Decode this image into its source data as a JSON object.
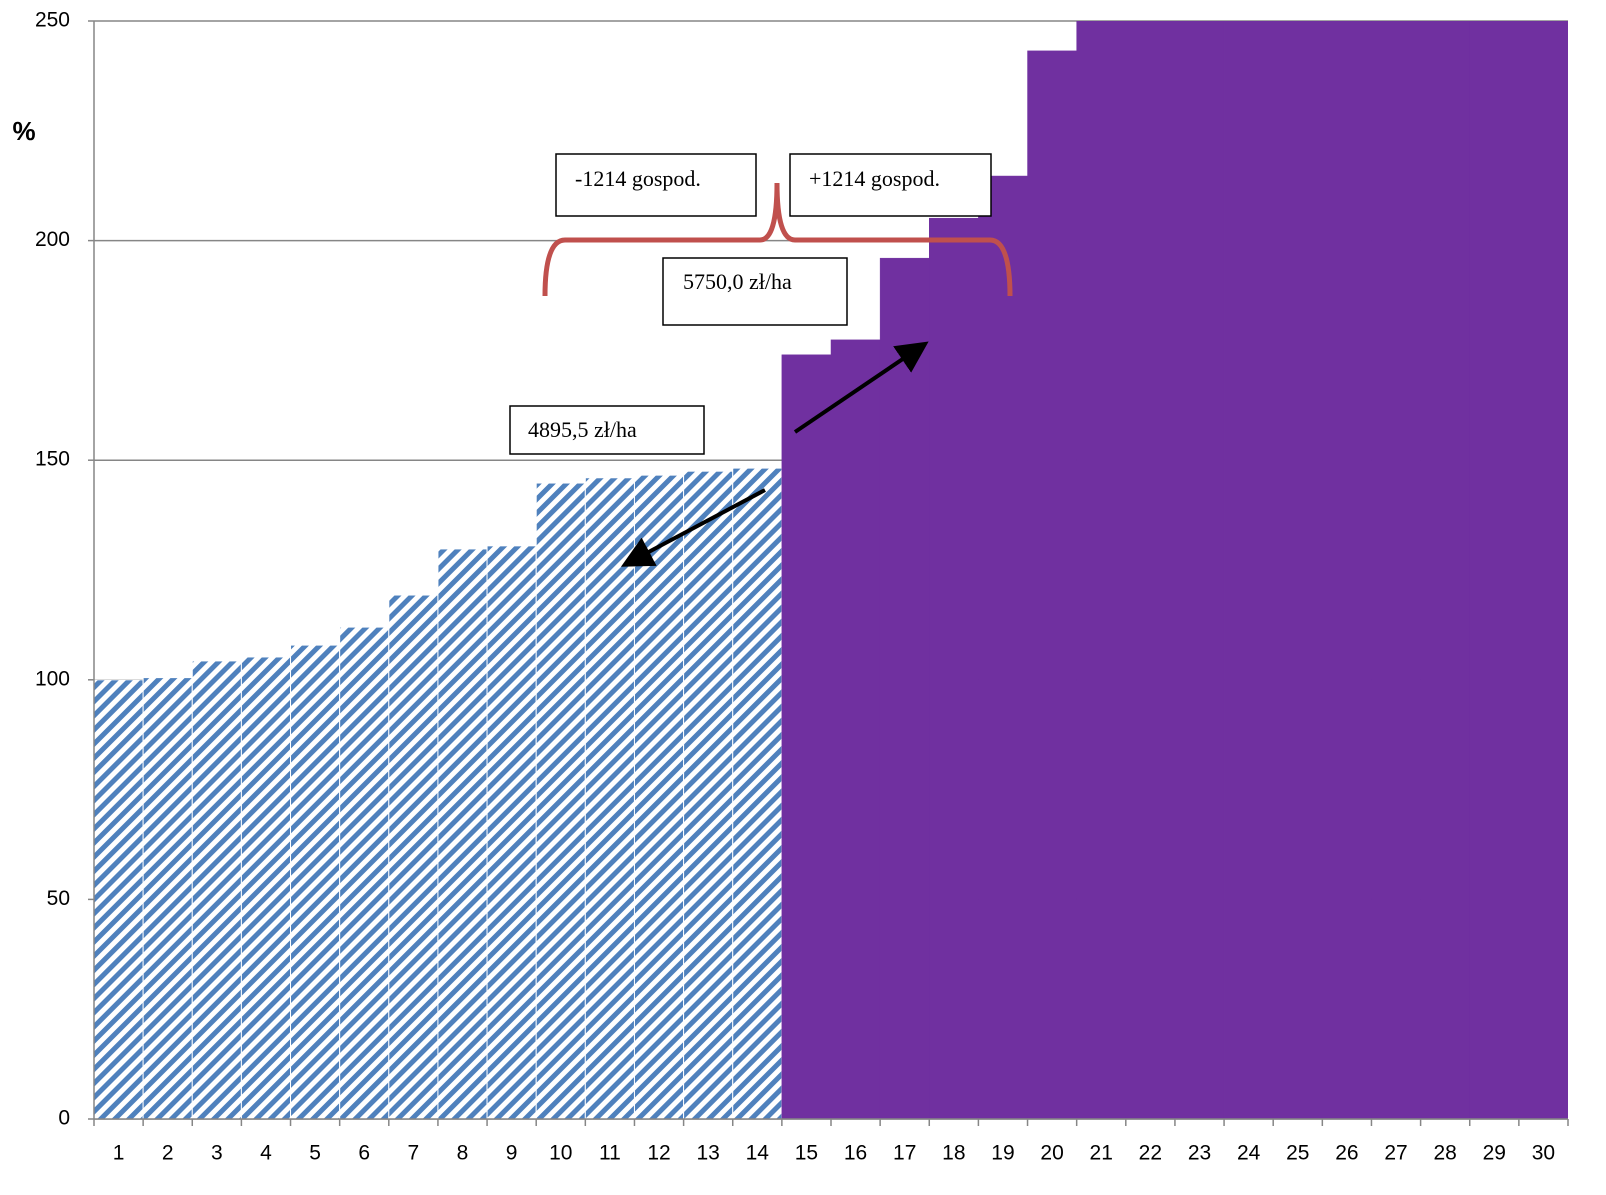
{
  "chart_data": {
    "type": "bar",
    "y_label": "%",
    "categories": [
      "1",
      "2",
      "3",
      "4",
      "5",
      "6",
      "7",
      "8",
      "9",
      "10",
      "11",
      "12",
      "13",
      "14",
      "15",
      "16",
      "17",
      "18",
      "19",
      "20",
      "21",
      "22",
      "23",
      "24",
      "25",
      "26",
      "27",
      "28",
      "29",
      "30"
    ],
    "series": [
      {
        "color": "#4f81bd",
        "pattern": "hatch",
        "values": [
          100,
          100.5,
          104.3,
          105.2,
          107.9,
          112,
          119.3,
          129.8,
          130.5,
          144.8,
          146,
          146.6,
          147.5,
          148.2,
          null,
          null,
          null,
          null,
          null,
          null,
          null,
          null,
          null,
          null,
          null,
          null,
          null,
          null,
          null,
          null
        ]
      },
      {
        "color": "#7030a0",
        "pattern": "solid",
        "values": [
          null,
          null,
          null,
          null,
          null,
          null,
          null,
          null,
          null,
          null,
          null,
          null,
          null,
          null,
          174,
          177.4,
          196,
          205.1,
          214.7,
          243.2,
          250,
          250,
          250,
          250,
          250,
          250,
          250,
          250,
          250,
          250
        ]
      }
    ],
    "ylim": [
      0,
      250
    ],
    "yticks": [
      0,
      50,
      100,
      150,
      200,
      250
    ],
    "grid": true,
    "annotations": [
      "-1214 gospod.",
      "+1214 gospod.",
      "5750,0 zł/ha",
      "4895,5 zł/ha"
    ]
  }
}
